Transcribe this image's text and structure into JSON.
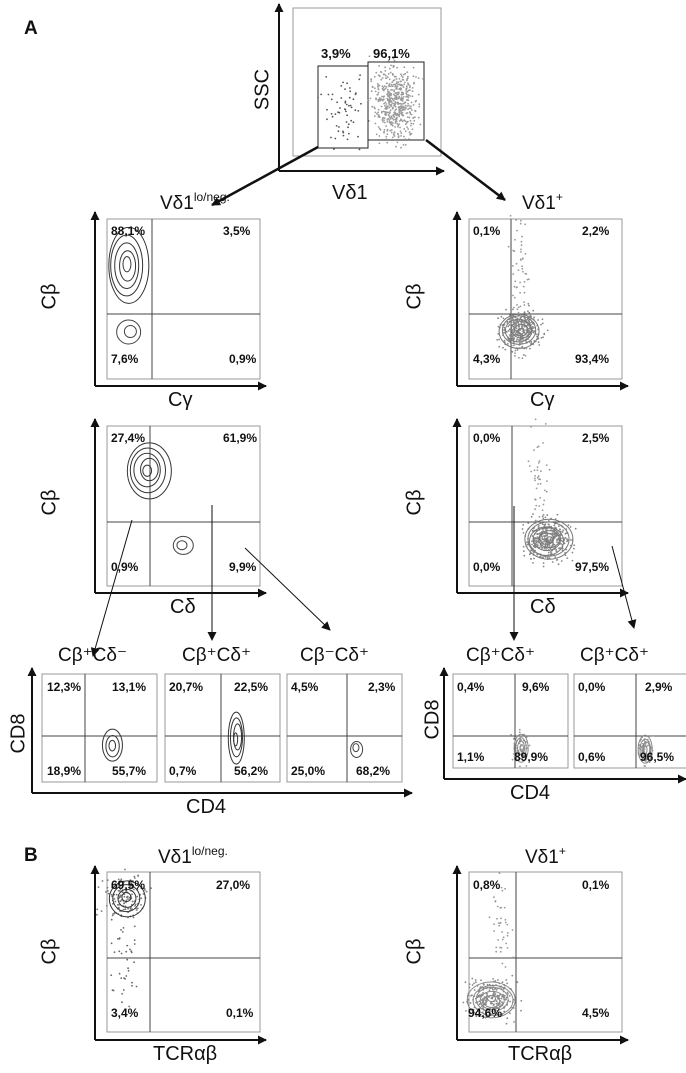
{
  "panels": {
    "a": "A",
    "b": "B"
  },
  "top_plot": {
    "ylabel": "SSC",
    "xlabel": "Vδ1",
    "gate_left_pct": "3,9%",
    "gate_right_pct": "96,1%"
  },
  "row1": [
    {
      "title_main": "Vδ1",
      "title_sup": "lo/neg.",
      "ylabel": "Cβ",
      "xlabel": "Cγ",
      "q": {
        "ul": "88,1%",
        "ur": "3,5%",
        "ll": "7,6%",
        "lr": "0,9%"
      }
    },
    {
      "title_main": "Vδ1",
      "title_sup": "+",
      "ylabel": "Cβ",
      "xlabel": "Cγ",
      "q": {
        "ul": "0,1%",
        "ur": "2,2%",
        "ll": "4,3%",
        "lr": "93,4%"
      }
    }
  ],
  "row2": [
    {
      "ylabel": "Cβ",
      "xlabel": "Cδ",
      "q": {
        "ul": "27,4%",
        "ur": "61,9%",
        "ll": "0,9%",
        "lr": "9,9%"
      }
    },
    {
      "ylabel": "Cβ",
      "xlabel": "Cδ",
      "q": {
        "ul": "0,0%",
        "ur": "2,5%",
        "ll": "0,0%",
        "lr": "97,5%"
      }
    }
  ],
  "row3_left": {
    "ylabel": "CD8",
    "xlabel": "CD4",
    "plots": [
      {
        "title": "Cβ⁺Cδ⁻",
        "q": {
          "ul": "12,3%",
          "ur": "13,1%",
          "ll": "18,9%",
          "lr": "55,7%"
        }
      },
      {
        "title": "Cβ⁺Cδ⁺",
        "q": {
          "ul": "20,7%",
          "ur": "22,5%",
          "ll": "0,7%",
          "lr": "56,2%"
        }
      },
      {
        "title": "Cβ⁻Cδ⁺",
        "q": {
          "ul": "4,5%",
          "ur": "2,3%",
          "ll": "25,0%",
          "lr": "68,2%"
        }
      }
    ]
  },
  "row3_right": {
    "ylabel": "CD8",
    "xlabel": "CD4",
    "plots": [
      {
        "title": "Cβ⁺Cδ⁺",
        "q": {
          "ul": "0,4%",
          "ur": "9,6%",
          "ll": "1,1%",
          "lr": "89,9%"
        }
      },
      {
        "title": "Cβ⁺Cδ⁺",
        "q": {
          "ul": "0,0%",
          "ur": "2,9%",
          "ll": "0,6%",
          "lr": "96,5%"
        }
      }
    ]
  },
  "rowB": [
    {
      "title_main": "Vδ1",
      "title_sup": "lo/neg.",
      "ylabel": "Cβ",
      "xlabel": "TCRαβ",
      "q": {
        "ul": "69,5%",
        "ur": "27,0%",
        "ll": "3,4%",
        "lr": "0,1%"
      }
    },
    {
      "title_main": "Vδ1",
      "title_sup": "+",
      "ylabel": "Cβ",
      "xlabel": "TCRαβ",
      "q": {
        "ul": "0,8%",
        "ur": "0,1%",
        "ll": "94,6%",
        "lr": "4,5%"
      }
    }
  ]
}
